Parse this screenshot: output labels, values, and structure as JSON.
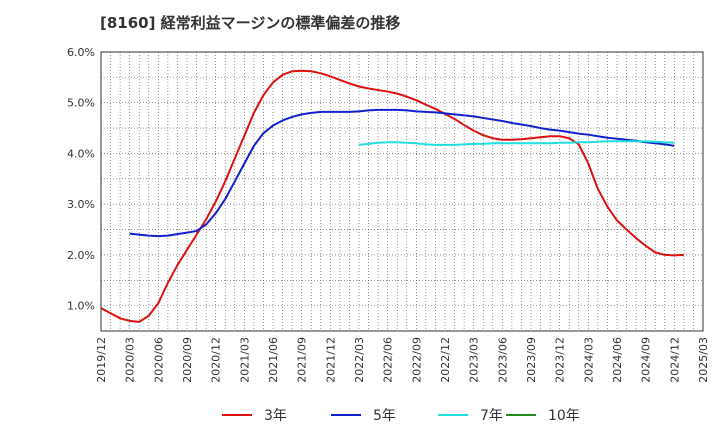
{
  "chart_data": {
    "type": "line",
    "title": "[8160]  経常利益マージンの標準偏差の推移",
    "xlabel": "",
    "ylabel": "",
    "ylim": [
      0.5,
      6.0
    ],
    "y_ticks": [
      "1.0%",
      "2.0%",
      "3.0%",
      "4.0%",
      "5.0%",
      "6.0%"
    ],
    "y_tick_values": [
      1.0,
      2.0,
      3.0,
      4.0,
      5.0,
      6.0
    ],
    "x_ticks": [
      "2019/12",
      "2020/03",
      "2020/06",
      "2020/09",
      "2020/12",
      "2021/03",
      "2021/06",
      "2021/09",
      "2021/12",
      "2022/03",
      "2022/06",
      "2022/09",
      "2022/12",
      "2023/03",
      "2023/06",
      "2023/09",
      "2023/12",
      "2024/03",
      "2024/06",
      "2024/09",
      "2024/12",
      "2025/03"
    ],
    "grid": true,
    "legend_position": "bottom",
    "series": [
      {
        "name": "3年",
        "color": "#dd1111",
        "points": [
          [
            "2019/12",
            0.95
          ],
          [
            "2020/01",
            0.85
          ],
          [
            "2020/02",
            0.75
          ],
          [
            "2020/03",
            0.7
          ],
          [
            "2020/04",
            0.68
          ],
          [
            "2020/05",
            0.8
          ],
          [
            "2020/06",
            1.05
          ],
          [
            "2020/07",
            1.45
          ],
          [
            "2020/08",
            1.8
          ],
          [
            "2020/09",
            2.1
          ],
          [
            "2020/10",
            2.4
          ],
          [
            "2020/11",
            2.7
          ],
          [
            "2020/12",
            3.05
          ],
          [
            "2021/01",
            3.45
          ],
          [
            "2021/02",
            3.9
          ],
          [
            "2021/03",
            4.35
          ],
          [
            "2021/04",
            4.8
          ],
          [
            "2021/05",
            5.15
          ],
          [
            "2021/06",
            5.4
          ],
          [
            "2021/07",
            5.55
          ],
          [
            "2021/08",
            5.62
          ],
          [
            "2021/09",
            5.63
          ],
          [
            "2021/10",
            5.62
          ],
          [
            "2021/11",
            5.58
          ],
          [
            "2021/12",
            5.52
          ],
          [
            "2022/01",
            5.45
          ],
          [
            "2022/02",
            5.38
          ],
          [
            "2022/03",
            5.32
          ],
          [
            "2022/04",
            5.28
          ],
          [
            "2022/05",
            5.25
          ],
          [
            "2022/06",
            5.22
          ],
          [
            "2022/07",
            5.18
          ],
          [
            "2022/08",
            5.12
          ],
          [
            "2022/09",
            5.05
          ],
          [
            "2022/10",
            4.96
          ],
          [
            "2022/11",
            4.88
          ],
          [
            "2022/12",
            4.78
          ],
          [
            "2023/01",
            4.68
          ],
          [
            "2023/02",
            4.56
          ],
          [
            "2023/03",
            4.45
          ],
          [
            "2023/04",
            4.36
          ],
          [
            "2023/05",
            4.3
          ],
          [
            "2023/06",
            4.27
          ],
          [
            "2023/07",
            4.27
          ],
          [
            "2023/08",
            4.28
          ],
          [
            "2023/09",
            4.3
          ],
          [
            "2023/10",
            4.32
          ],
          [
            "2023/11",
            4.34
          ],
          [
            "2023/12",
            4.34
          ],
          [
            "2024/01",
            4.3
          ],
          [
            "2024/02",
            4.18
          ],
          [
            "2024/03",
            3.8
          ],
          [
            "2024/04",
            3.3
          ],
          [
            "2024/05",
            2.95
          ],
          [
            "2024/06",
            2.68
          ],
          [
            "2024/07",
            2.5
          ],
          [
            "2024/08",
            2.33
          ],
          [
            "2024/09",
            2.18
          ],
          [
            "2024/10",
            2.05
          ],
          [
            "2024/11",
            2.0
          ],
          [
            "2024/12",
            1.99
          ],
          [
            "2025/01",
            2.0
          ]
        ]
      },
      {
        "name": "5年",
        "color": "#1122cc",
        "points": [
          [
            "2020/03",
            2.42
          ],
          [
            "2020/04",
            2.4
          ],
          [
            "2020/05",
            2.38
          ],
          [
            "2020/06",
            2.37
          ],
          [
            "2020/07",
            2.38
          ],
          [
            "2020/08",
            2.41
          ],
          [
            "2020/09",
            2.44
          ],
          [
            "2020/10",
            2.47
          ],
          [
            "2020/11",
            2.6
          ],
          [
            "2020/12",
            2.82
          ],
          [
            "2021/01",
            3.1
          ],
          [
            "2021/02",
            3.45
          ],
          [
            "2021/03",
            3.8
          ],
          [
            "2021/04",
            4.15
          ],
          [
            "2021/05",
            4.4
          ],
          [
            "2021/06",
            4.55
          ],
          [
            "2021/07",
            4.65
          ],
          [
            "2021/08",
            4.72
          ],
          [
            "2021/09",
            4.77
          ],
          [
            "2021/10",
            4.8
          ],
          [
            "2021/11",
            4.82
          ],
          [
            "2021/12",
            4.82
          ],
          [
            "2022/01",
            4.82
          ],
          [
            "2022/02",
            4.82
          ],
          [
            "2022/03",
            4.83
          ],
          [
            "2022/04",
            4.85
          ],
          [
            "2022/05",
            4.86
          ],
          [
            "2022/06",
            4.86
          ],
          [
            "2022/07",
            4.86
          ],
          [
            "2022/08",
            4.85
          ],
          [
            "2022/09",
            4.83
          ],
          [
            "2022/10",
            4.82
          ],
          [
            "2022/11",
            4.81
          ],
          [
            "2022/12",
            4.79
          ],
          [
            "2023/01",
            4.77
          ],
          [
            "2023/02",
            4.75
          ],
          [
            "2023/03",
            4.73
          ],
          [
            "2023/04",
            4.7
          ],
          [
            "2023/05",
            4.67
          ],
          [
            "2023/06",
            4.64
          ],
          [
            "2023/07",
            4.6
          ],
          [
            "2023/08",
            4.57
          ],
          [
            "2023/09",
            4.54
          ],
          [
            "2023/10",
            4.5
          ],
          [
            "2023/11",
            4.47
          ],
          [
            "2023/12",
            4.45
          ],
          [
            "2024/01",
            4.42
          ],
          [
            "2024/02",
            4.39
          ],
          [
            "2024/03",
            4.37
          ],
          [
            "2024/04",
            4.34
          ],
          [
            "2024/05",
            4.31
          ],
          [
            "2024/06",
            4.29
          ],
          [
            "2024/07",
            4.27
          ],
          [
            "2024/08",
            4.25
          ],
          [
            "2024/09",
            4.22
          ],
          [
            "2024/10",
            4.2
          ],
          [
            "2024/11",
            4.18
          ],
          [
            "2024/12",
            4.15
          ]
        ]
      },
      {
        "name": "7年",
        "color": "#22dddd",
        "points": [
          [
            "2022/03",
            4.17
          ],
          [
            "2022/04",
            4.19
          ],
          [
            "2022/05",
            4.21
          ],
          [
            "2022/06",
            4.22
          ],
          [
            "2022/07",
            4.22
          ],
          [
            "2022/08",
            4.21
          ],
          [
            "2022/09",
            4.2
          ],
          [
            "2022/10",
            4.18
          ],
          [
            "2022/11",
            4.17
          ],
          [
            "2022/12",
            4.17
          ],
          [
            "2023/01",
            4.17
          ],
          [
            "2023/02",
            4.18
          ],
          [
            "2023/03",
            4.19
          ],
          [
            "2023/04",
            4.19
          ],
          [
            "2023/05",
            4.2
          ],
          [
            "2023/06",
            4.2
          ],
          [
            "2023/07",
            4.2
          ],
          [
            "2023/08",
            4.2
          ],
          [
            "2023/09",
            4.2
          ],
          [
            "2023/10",
            4.2
          ],
          [
            "2023/11",
            4.2
          ],
          [
            "2023/12",
            4.21
          ],
          [
            "2024/01",
            4.21
          ],
          [
            "2024/02",
            4.22
          ],
          [
            "2024/03",
            4.22
          ],
          [
            "2024/04",
            4.23
          ],
          [
            "2024/05",
            4.24
          ],
          [
            "2024/06",
            4.24
          ],
          [
            "2024/07",
            4.24
          ],
          [
            "2024/08",
            4.24
          ],
          [
            "2024/09",
            4.24
          ],
          [
            "2024/10",
            4.23
          ],
          [
            "2024/11",
            4.22
          ],
          [
            "2024/12",
            4.21
          ]
        ]
      },
      {
        "name": "10年",
        "color": "#228822",
        "points": []
      }
    ]
  }
}
